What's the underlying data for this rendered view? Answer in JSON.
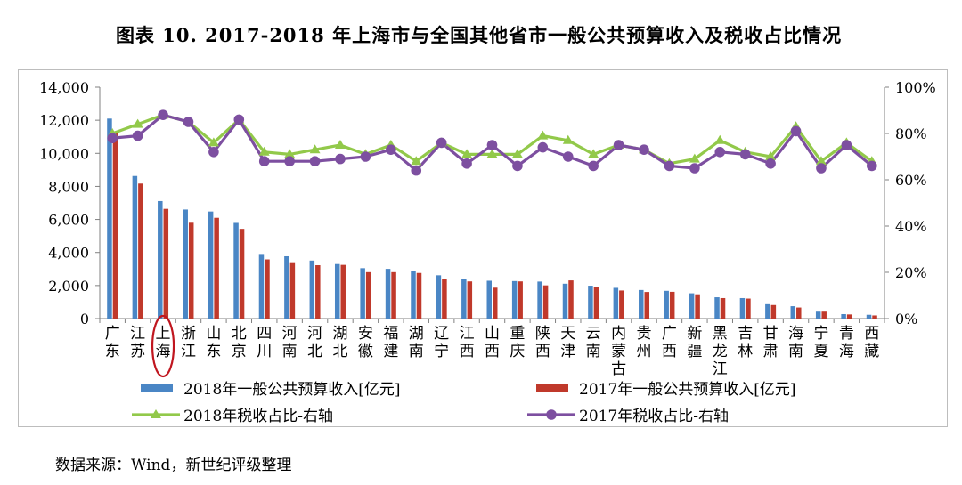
{
  "title": "图表 10. 2017-2018 年上海市与全国其他省市一般公共预算收入及税收占比情况",
  "source": "数据来源：Wind，新世纪评级整理",
  "colors": {
    "bar2018": "#4a86c5",
    "bar2017": "#c0392b",
    "line2018": "#92c94a",
    "line2017": "#7d4fa0",
    "highlight": "#c0161f",
    "axis": "#808080"
  },
  "chart_data": {
    "type": "bar",
    "title": "图表 10. 2017-2018 年上海市与全国其他省市一般公共预算收入及税收占比情况",
    "categories": [
      "广东",
      "江苏",
      "上海",
      "浙江",
      "山东",
      "北京",
      "四川",
      "河南",
      "河北",
      "湖北",
      "安徽",
      "福建",
      "湖南",
      "辽宁",
      "江西",
      "山西",
      "重庆",
      "陕西",
      "天津",
      "云南",
      "内蒙古",
      "贵州",
      "广西",
      "新疆",
      "黑龙江",
      "吉林",
      "甘肃",
      "海南",
      "宁夏",
      "青海",
      "西藏"
    ],
    "highlight_category": "上海",
    "left_axis": {
      "ylim": [
        0,
        14000
      ],
      "ticks": [
        "0",
        "2,000",
        "4,000",
        "6,000",
        "8,000",
        "10,000",
        "12,000",
        "14,000"
      ]
    },
    "right_axis": {
      "ylim": [
        0,
        1
      ],
      "ticks": [
        "0%",
        "20%",
        "40%",
        "60%",
        "80%",
        "100%"
      ]
    },
    "series": [
      {
        "name": "2018年一般公共预算收入[亿元]",
        "type": "bar",
        "axis": "left",
        "values": [
          12100,
          8630,
          7110,
          6600,
          6480,
          5790,
          3910,
          3770,
          3510,
          3300,
          3050,
          3010,
          2860,
          2620,
          2370,
          2290,
          2270,
          2240,
          2110,
          1990,
          1860,
          1730,
          1680,
          1530,
          1290,
          1240,
          870,
          750,
          420,
          270,
          230
        ]
      },
      {
        "name": "2017年一般公共预算收入[亿元]",
        "type": "bar",
        "axis": "left",
        "values": [
          11300,
          8170,
          6640,
          5800,
          6100,
          5430,
          3580,
          3410,
          3230,
          3250,
          2810,
          2810,
          2760,
          2390,
          2250,
          1870,
          2250,
          2010,
          2310,
          1890,
          1700,
          1610,
          1620,
          1470,
          1240,
          1210,
          820,
          670,
          420,
          250,
          190
        ]
      },
      {
        "name": "2018年税收占比-右轴",
        "type": "line",
        "axis": "right",
        "values": [
          0.8,
          0.84,
          0.88,
          0.85,
          0.76,
          0.86,
          0.72,
          0.71,
          0.73,
          0.75,
          0.71,
          0.75,
          0.68,
          0.76,
          0.71,
          0.71,
          0.71,
          0.79,
          0.77,
          0.71,
          0.75,
          0.73,
          0.67,
          0.69,
          0.77,
          0.72,
          0.7,
          0.83,
          0.68,
          0.76,
          0.68
        ]
      },
      {
        "name": "2017年税收占比-右轴",
        "type": "line",
        "axis": "right",
        "values": [
          0.78,
          0.79,
          0.88,
          0.85,
          0.72,
          0.86,
          0.68,
          0.68,
          0.68,
          0.69,
          0.7,
          0.73,
          0.64,
          0.76,
          0.67,
          0.75,
          0.66,
          0.74,
          0.7,
          0.66,
          0.75,
          0.73,
          0.66,
          0.65,
          0.72,
          0.71,
          0.67,
          0.81,
          0.65,
          0.75,
          0.66
        ]
      }
    ],
    "legend_position": "bottom"
  }
}
